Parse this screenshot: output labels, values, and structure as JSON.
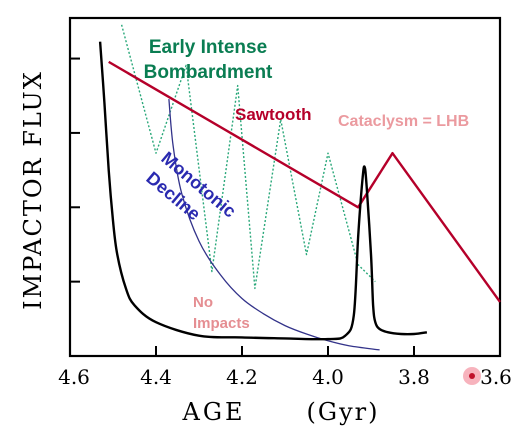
{
  "chart_data": {
    "type": "line",
    "xlabel": "AGE",
    "xunit": "(Gyr)",
    "ylabel": "IMPACTOR FLUX",
    "xlim": [
      4.6,
      3.6
    ],
    "ylim": [
      0,
      100
    ],
    "x_ticks": [
      "4.6",
      "4.4",
      "4.2",
      "4.0",
      "3.8",
      "3.6"
    ],
    "x_tick_values": [
      4.6,
      4.4,
      4.2,
      4.0,
      3.8,
      3.6
    ],
    "y_tick_values": [
      22,
      44,
      66,
      88
    ],
    "colors": {
      "axis": "#000000",
      "early_bombardment": "#2aa87a",
      "sawtooth": "#b5002a",
      "monotonic": "#33338a",
      "cataclysm": "#000000",
      "no_impacts": "#e58e92",
      "cataclysm_label": "#eb9a9f",
      "marker": "#e0304a"
    },
    "labels": {
      "early_bombardment_line1": "Early Intense",
      "early_bombardment_line2": "Bombardment",
      "sawtooth": "Sawtooth",
      "cataclysm": "Cataclysm = LHB",
      "monotonic_line1": "Monotonic",
      "monotonic_line2": "Decline",
      "no_impacts_line1": "No",
      "no_impacts_line2": "Impacts"
    },
    "series": [
      {
        "key": "cataclysm",
        "style": "solid",
        "x": [
          4.53,
          4.52,
          4.51,
          4.5,
          4.49,
          4.47,
          4.45,
          4.4,
          4.3,
          4.2,
          4.1,
          4.0,
          3.96,
          3.94,
          3.93,
          3.92,
          3.915,
          3.91,
          3.9,
          3.895,
          3.89,
          3.88,
          3.86,
          3.83,
          3.8,
          3.77
        ],
        "y": [
          93,
          75,
          55,
          40,
          30,
          20,
          15,
          10,
          6,
          5.5,
          5.2,
          5,
          6,
          12,
          35,
          52,
          56,
          50,
          30,
          15,
          10,
          8,
          7,
          6.5,
          6.5,
          7
        ]
      },
      {
        "key": "sawtooth",
        "style": "solid",
        "x": [
          4.51,
          3.93,
          3.85,
          3.6
        ],
        "y": [
          87,
          44,
          60,
          16
        ]
      },
      {
        "key": "early_bombardment",
        "style": "dotted",
        "x": [
          4.48,
          4.4,
          4.33,
          4.27,
          4.21,
          4.17,
          4.11,
          4.05,
          4.0,
          3.93,
          3.89
        ],
        "y": [
          98,
          60,
          86,
          25,
          80,
          20,
          70,
          30,
          60,
          27,
          22
        ]
      },
      {
        "key": "monotonic",
        "style": "solid",
        "x": [
          4.37,
          4.36,
          4.34,
          4.3,
          4.25,
          4.2,
          4.15,
          4.1,
          4.05,
          4.0,
          3.95,
          3.88
        ],
        "y": [
          76,
          62,
          48,
          34,
          24,
          17,
          12.5,
          9,
          6.5,
          4.5,
          3,
          1.8
        ]
      }
    ]
  }
}
